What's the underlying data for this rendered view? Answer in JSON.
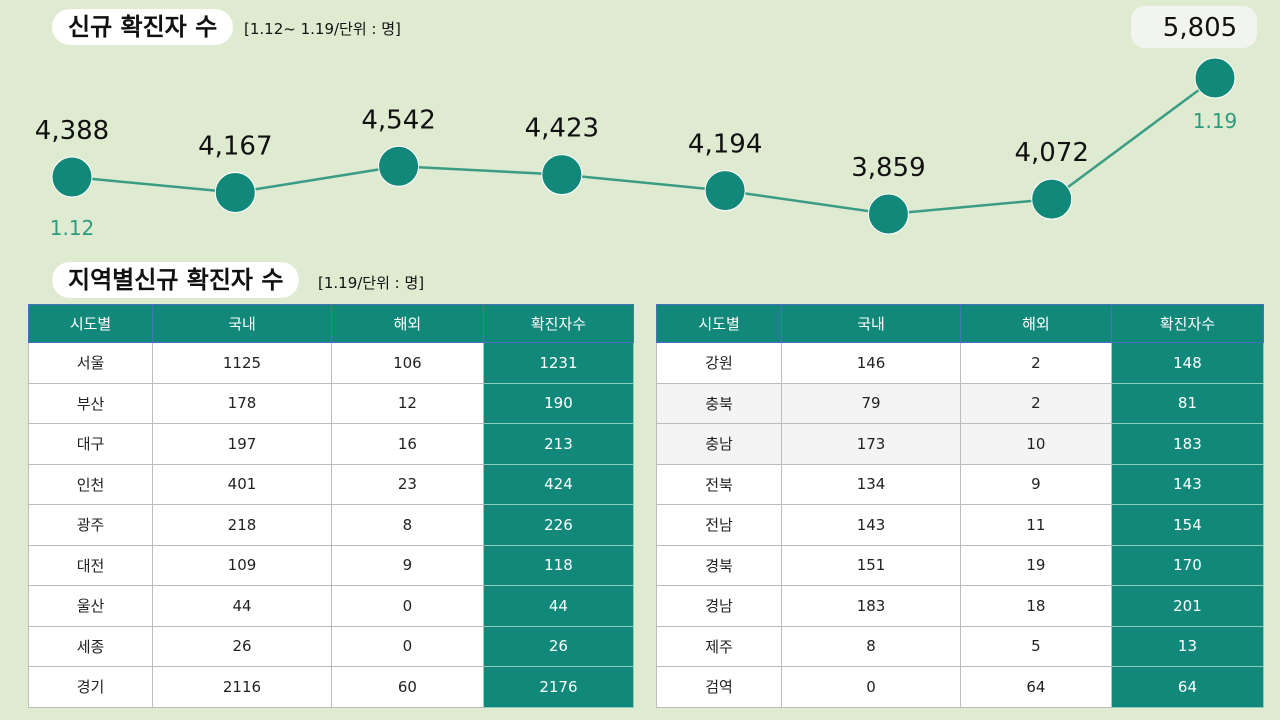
{
  "chart_data": {
    "type": "line",
    "title": "신규 확진자 수",
    "subtitle": "[1.12~ 1.19/단위 : 명]",
    "categories": [
      "1.12",
      null,
      null,
      null,
      null,
      null,
      null,
      "1.19"
    ],
    "values": [
      4388,
      4167,
      4542,
      4423,
      4194,
      3859,
      4072,
      5805
    ],
    "value_labels": [
      "4,388",
      "4,167",
      "4,542",
      "4,423",
      "4,194",
      "3,859",
      "4,072",
      "5,805"
    ],
    "color": "#12887a",
    "line_color": "#3a9c84"
  },
  "regional": {
    "title": "지역별신규 확진자 수",
    "subtitle": "[1.19/단위 : 명]",
    "tables": [
      {
        "headers": [
          "시도별",
          "국내",
          "해외",
          "확진자수"
        ],
        "rows": [
          [
            "서울",
            1125,
            106,
            1231
          ],
          [
            "부산",
            178,
            12,
            190
          ],
          [
            "대구",
            197,
            16,
            213
          ],
          [
            "인천",
            401,
            23,
            424
          ],
          [
            "광주",
            218,
            8,
            226
          ],
          [
            "대전",
            109,
            9,
            118
          ],
          [
            "울산",
            44,
            0,
            44
          ],
          [
            "세종",
            26,
            0,
            26
          ],
          [
            "경기",
            2116,
            60,
            2176
          ]
        ]
      },
      {
        "headers": [
          "시도별",
          "국내",
          "해외",
          "확진자수"
        ],
        "rows": [
          [
            "강원",
            146,
            2,
            148
          ],
          [
            "충북",
            79,
            2,
            81
          ],
          [
            "충남",
            173,
            10,
            183
          ],
          [
            "전북",
            134,
            9,
            143
          ],
          [
            "전남",
            143,
            11,
            154
          ],
          [
            "경북",
            151,
            19,
            170
          ],
          [
            "경남",
            183,
            18,
            201
          ],
          [
            "제주",
            8,
            5,
            13
          ],
          [
            "검역",
            0,
            64,
            64
          ]
        ]
      }
    ]
  }
}
